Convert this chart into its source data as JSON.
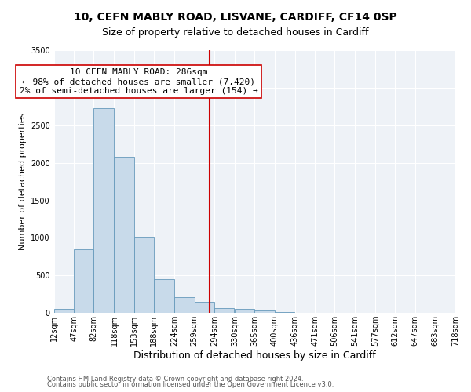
{
  "title": "10, CEFN MABLY ROAD, LISVANE, CARDIFF, CF14 0SP",
  "subtitle": "Size of property relative to detached houses in Cardiff",
  "xlabel": "Distribution of detached houses by size in Cardiff",
  "ylabel": "Number of detached properties",
  "bar_color": "#c8daea",
  "bar_edge_color": "#6699bb",
  "background_color": "#eef2f7",
  "plot_bg_color": "#eef2f7",
  "grid_color": "#ffffff",
  "bin_edges": [
    12,
    47,
    82,
    118,
    153,
    188,
    224,
    259,
    294,
    330,
    365,
    400,
    436,
    471,
    506,
    541,
    577,
    612,
    647,
    683,
    718
  ],
  "bin_labels": [
    "12sqm",
    "47sqm",
    "82sqm",
    "118sqm",
    "153sqm",
    "188sqm",
    "224sqm",
    "259sqm",
    "294sqm",
    "330sqm",
    "365sqm",
    "400sqm",
    "436sqm",
    "471sqm",
    "506sqm",
    "541sqm",
    "577sqm",
    "612sqm",
    "647sqm",
    "683sqm",
    "718sqm"
  ],
  "counts": [
    50,
    850,
    2730,
    2080,
    1010,
    450,
    210,
    150,
    60,
    50,
    30,
    10,
    5,
    2,
    1,
    0,
    0,
    0,
    0,
    0
  ],
  "vline_x": 286,
  "vline_color": "#cc0000",
  "annotation_text": "10 CEFN MABLY ROAD: 286sqm\n← 98% of detached houses are smaller (7,420)\n2% of semi-detached houses are larger (154) →",
  "annotation_box_facecolor": "#ffffff",
  "annotation_box_edgecolor": "#cc0000",
  "ylim": [
    0,
    3500
  ],
  "yticks": [
    0,
    500,
    1000,
    1500,
    2000,
    2500,
    3000,
    3500
  ],
  "footer_line1": "Contains HM Land Registry data © Crown copyright and database right 2024.",
  "footer_line2": "Contains public sector information licensed under the Open Government Licence v3.0.",
  "title_fontsize": 10,
  "subtitle_fontsize": 9,
  "xlabel_fontsize": 9,
  "ylabel_fontsize": 8,
  "tick_fontsize": 7,
  "annotation_fontsize": 8,
  "footer_fontsize": 6
}
